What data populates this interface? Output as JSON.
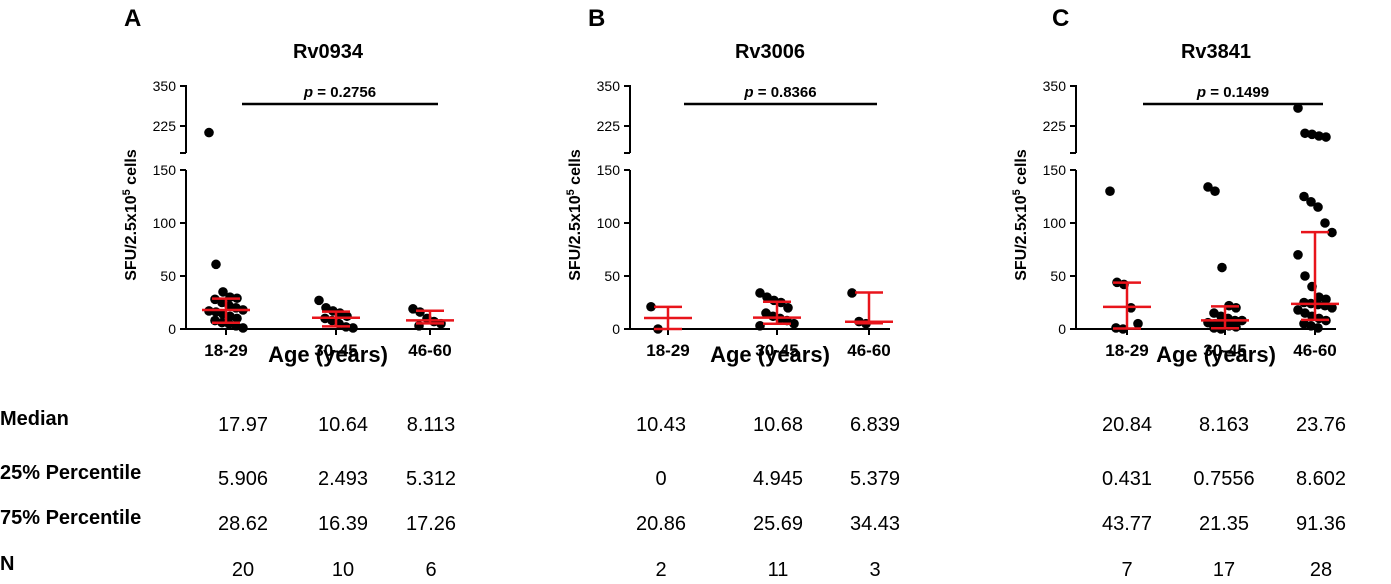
{
  "chart_data": [
    {
      "type": "scatter",
      "panel_letter": "A",
      "title": "Rv0934",
      "xlabel": "Age (years)",
      "ylabel_main": "SFU/2.5x10",
      "ylabel_sup": "5",
      "ylabel_tail": " cells",
      "categories": [
        "18-29",
        "30-45",
        "46-60"
      ],
      "ylim_lower": [
        0,
        150
      ],
      "ylim_upper": [
        150,
        350
      ],
      "yticks_lower": [
        "0",
        "50",
        "100",
        "150"
      ],
      "yticks_upper": [
        "225",
        "350"
      ],
      "p_value_prefix": "p",
      "p_value_text": " = 0.2756",
      "series": [
        {
          "name": "18-29",
          "values": [
            210,
            61,
            35,
            30,
            29,
            28,
            25,
            22,
            20,
            18,
            17,
            16,
            14,
            12,
            10,
            8,
            6,
            5,
            3,
            1
          ]
        },
        {
          "name": "30-45",
          "values": [
            27,
            20,
            17,
            15,
            12,
            10,
            8,
            5,
            2,
            1
          ]
        },
        {
          "name": "46-60",
          "values": [
            19,
            16,
            10,
            7,
            5,
            3
          ]
        }
      ],
      "medians": [
        17.97,
        10.64,
        8.113
      ],
      "q1": [
        5.906,
        2.493,
        5.312
      ],
      "q3": [
        28.62,
        16.39,
        17.26
      ],
      "n": [
        20,
        10,
        6
      ]
    },
    {
      "type": "scatter",
      "panel_letter": "B",
      "title": "Rv3006",
      "xlabel": "Age (years)",
      "ylabel_main": "SFU/2.5x10",
      "ylabel_sup": "5",
      "ylabel_tail": " cells",
      "categories": [
        "18-29",
        "30-45",
        "46-60"
      ],
      "ylim_lower": [
        0,
        150
      ],
      "ylim_upper": [
        150,
        350
      ],
      "yticks_lower": [
        "0",
        "50",
        "100",
        "150"
      ],
      "yticks_upper": [
        "225",
        "350"
      ],
      "p_value_prefix": "p",
      "p_value_text": " = 0.8366",
      "series": [
        {
          "name": "18-29",
          "values": [
            21,
            0
          ]
        },
        {
          "name": "30-45",
          "values": [
            34,
            30,
            27,
            25,
            20,
            15,
            12,
            10,
            8,
            5,
            3
          ]
        },
        {
          "name": "46-60",
          "values": [
            34,
            7,
            5
          ]
        }
      ],
      "medians": [
        10.43,
        10.68,
        6.839
      ],
      "q1": [
        0,
        4.945,
        5.379
      ],
      "q3": [
        20.86,
        25.69,
        34.43
      ],
      "n": [
        2,
        11,
        3
      ]
    },
    {
      "type": "scatter",
      "panel_letter": "C",
      "title": "Rv3841",
      "xlabel": "Age (years)",
      "ylabel_main": "SFU/2.5x10",
      "ylabel_sup": "5",
      "ylabel_tail": " cells",
      "categories": [
        "18-29",
        "30-45",
        "46-60"
      ],
      "ylim_lower": [
        0,
        150
      ],
      "ylim_upper": [
        150,
        350
      ],
      "yticks_lower": [
        "0",
        "50",
        "100",
        "150"
      ],
      "yticks_upper": [
        "225",
        "350"
      ],
      "p_value_prefix": "p",
      "p_value_text": " = 0.1499",
      "series": [
        {
          "name": "18-29",
          "values": [
            130,
            44,
            42,
            20,
            5,
            1,
            0
          ]
        },
        {
          "name": "30-45",
          "values": [
            134,
            130,
            58,
            22,
            20,
            15,
            12,
            10,
            8,
            8,
            6,
            5,
            4,
            3,
            2,
            1,
            0
          ]
        },
        {
          "name": "46-60",
          "values": [
            282,
            208,
            205,
            200,
            197,
            125,
            120,
            115,
            100,
            91,
            70,
            50,
            40,
            30,
            28,
            25,
            24,
            23,
            22,
            20,
            18,
            15,
            12,
            10,
            8,
            5,
            3,
            1
          ]
        }
      ],
      "medians": [
        20.84,
        8.163,
        23.76
      ],
      "q1": [
        0.431,
        0.7556,
        8.602
      ],
      "q3": [
        43.77,
        21.35,
        91.36
      ],
      "n": [
        7,
        17,
        28
      ]
    }
  ],
  "table": {
    "row_labels": [
      "Median",
      "25% Percentile",
      "75% Percentile",
      "N"
    ],
    "panels": [
      {
        "rows": [
          [
            "17.97",
            "10.64",
            "8.113"
          ],
          [
            "5.906",
            "2.493",
            "5.312"
          ],
          [
            "28.62",
            "16.39",
            "17.26"
          ],
          [
            "20",
            "10",
            "6"
          ]
        ]
      },
      {
        "rows": [
          [
            "10.43",
            "10.68",
            "6.839"
          ],
          [
            "0",
            "4.945",
            "5.379"
          ],
          [
            "20.86",
            "25.69",
            "34.43"
          ],
          [
            "2",
            "11",
            "3"
          ]
        ]
      },
      {
        "rows": [
          [
            "20.84",
            "8.163",
            "23.76"
          ],
          [
            "0.431",
            "0.7556",
            "8.602"
          ],
          [
            "43.77",
            "21.35",
            "91.36"
          ],
          [
            "7",
            "17",
            "28"
          ]
        ]
      }
    ]
  },
  "colors": {
    "points": "#000000",
    "error_bars": "#e8141b",
    "axes": "#000000"
  }
}
